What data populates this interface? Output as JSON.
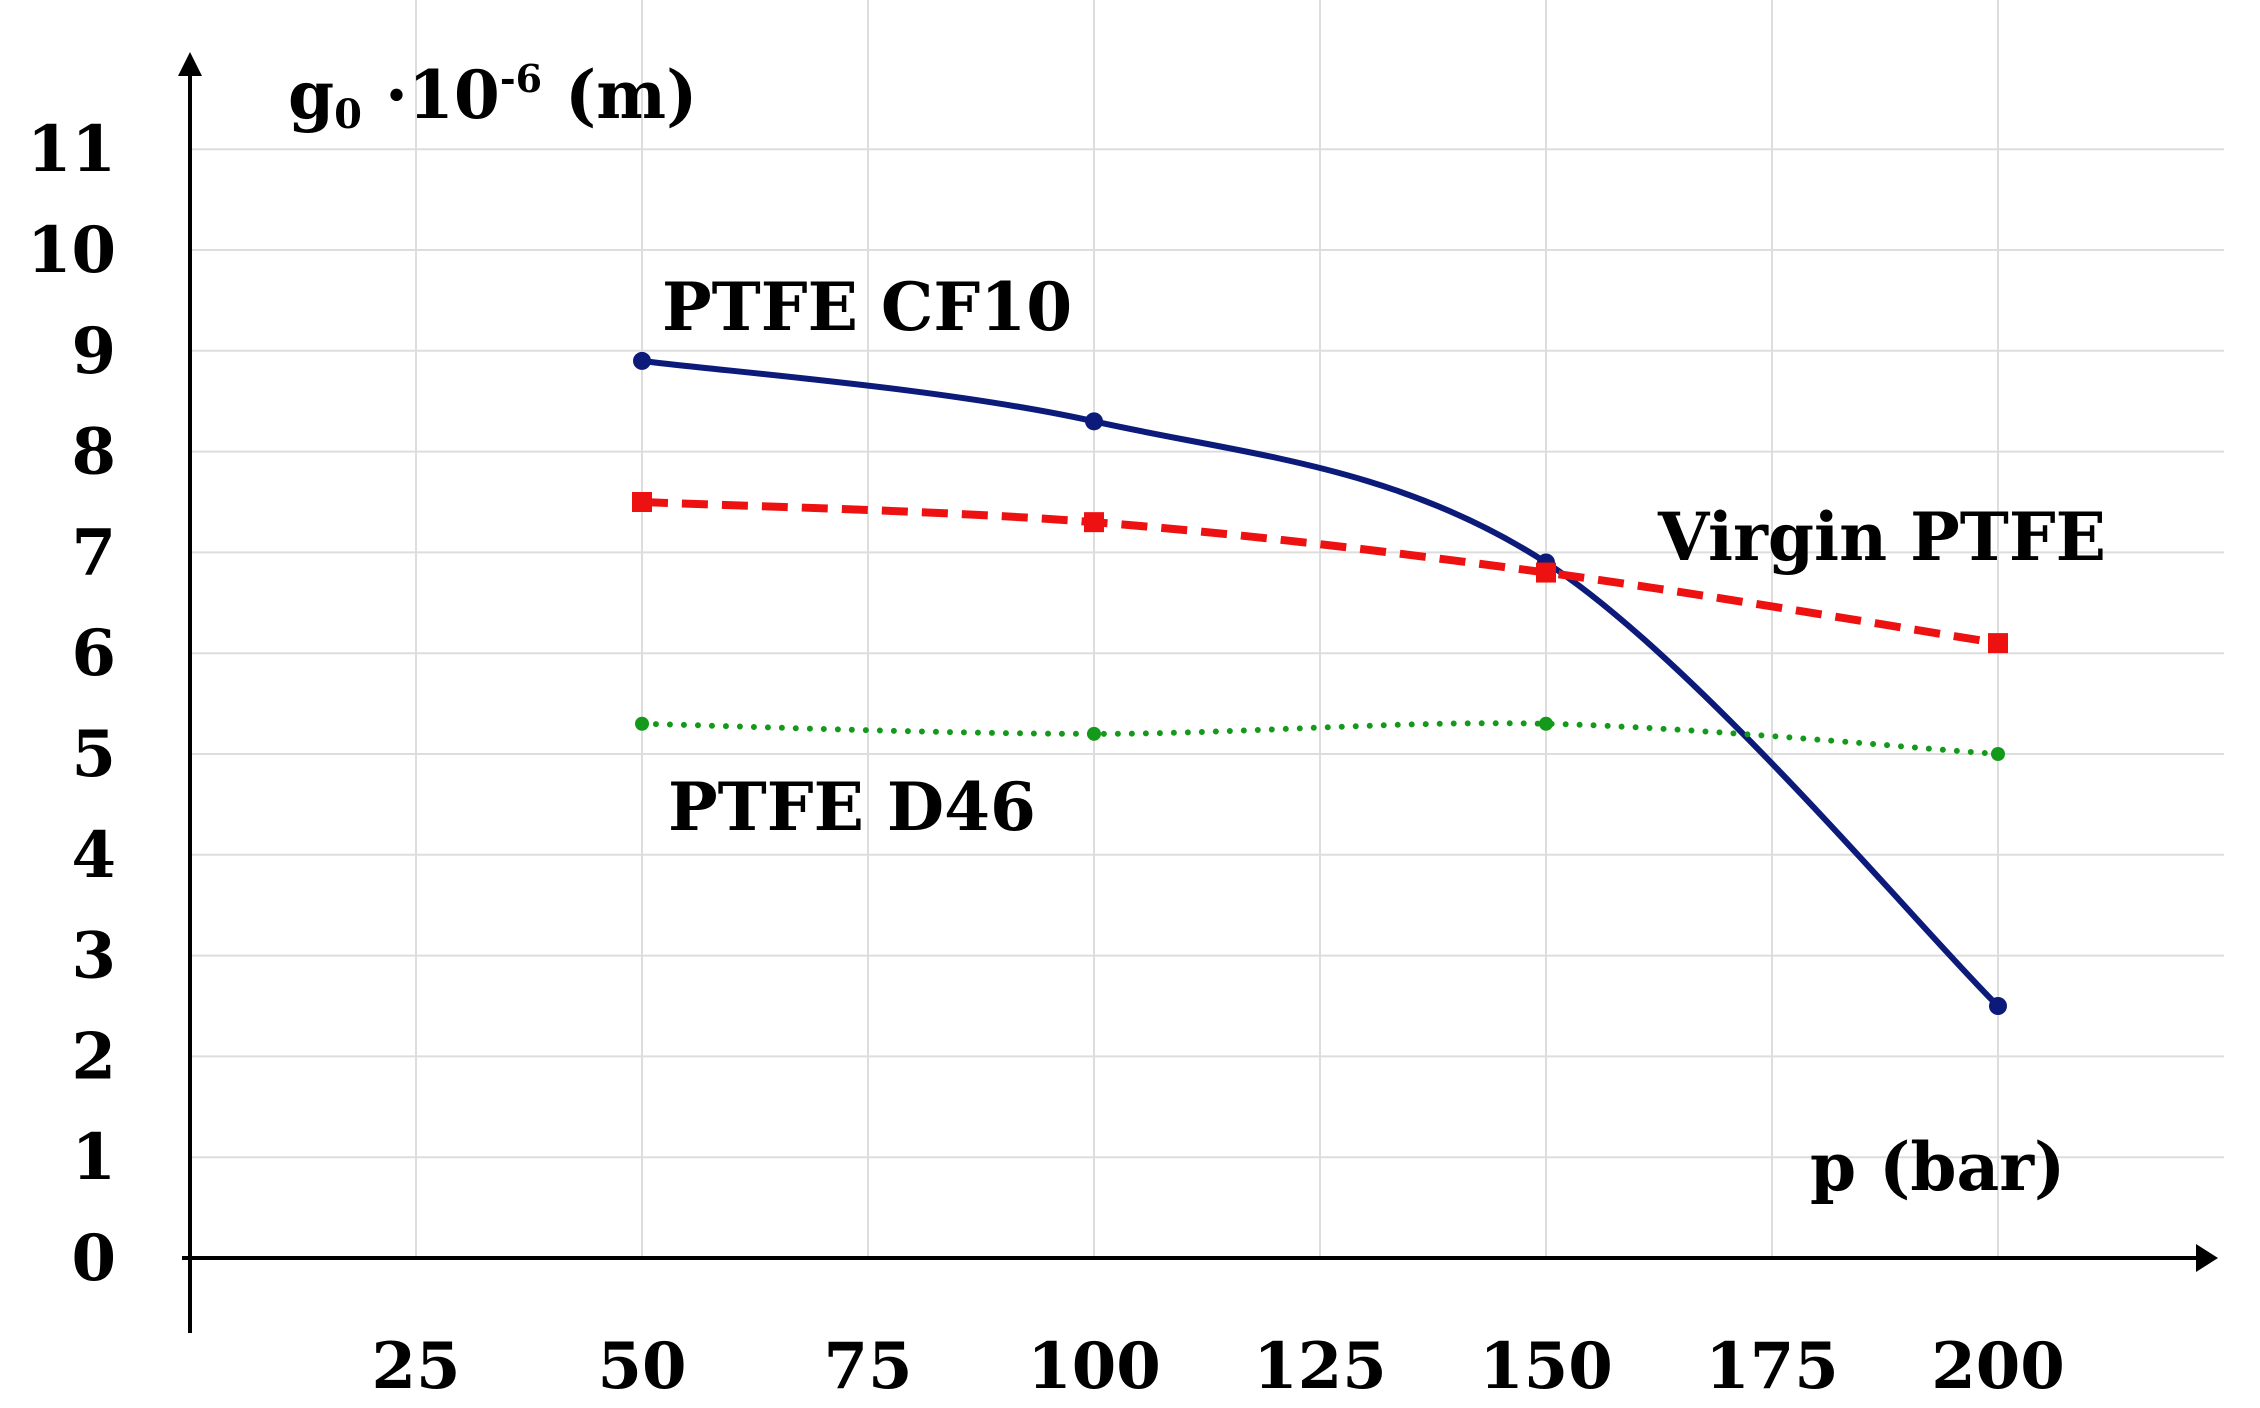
{
  "chart_data": {
    "type": "line",
    "xlabel": "p (bar)",
    "ylabel_main": "g",
    "ylabel_sub": "0",
    "ylabel_mid": " ·10",
    "ylabel_sup": "-6",
    "ylabel_unit": " (m)",
    "x_ticks": [
      25,
      50,
      75,
      100,
      125,
      150,
      175,
      200
    ],
    "y_ticks": [
      0,
      1,
      2,
      3,
      4,
      5,
      6,
      7,
      8,
      9,
      10,
      11
    ],
    "xlim": [
      0,
      225
    ],
    "ylim": [
      0,
      12
    ],
    "grid": true,
    "series": [
      {
        "name": "PTFE CF10",
        "color": "#0c1a7a",
        "style": "solid",
        "marker": "circle",
        "x": [
          50,
          100,
          150,
          200
        ],
        "y": [
          8.9,
          8.3,
          6.9,
          2.5
        ]
      },
      {
        "name": "Virgin PTFE",
        "color": "#ee1111",
        "style": "dashed",
        "marker": "square",
        "x": [
          50,
          100,
          150,
          200
        ],
        "y": [
          7.5,
          7.3,
          6.8,
          6.1
        ]
      },
      {
        "name": "PTFE D46",
        "color": "#149a1a",
        "style": "dotted",
        "marker": "circle",
        "x": [
          50,
          100,
          150,
          200
        ],
        "y": [
          5.3,
          5.2,
          5.3,
          5.0
        ]
      }
    ]
  }
}
